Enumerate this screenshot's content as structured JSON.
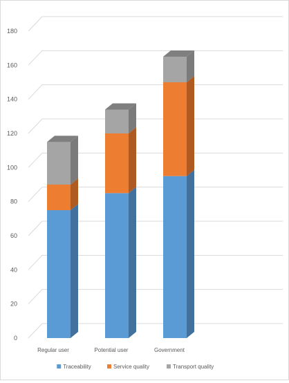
{
  "chart_data": {
    "type": "bar",
    "stacked": true,
    "style": "3d-columns",
    "categories": [
      "Regular user",
      "Potential user",
      "Government"
    ],
    "series": [
      {
        "name": "Traceability",
        "values": [
          75,
          85,
          95
        ],
        "color": "#5B9BD5",
        "side_color": "#41719C",
        "top_color": "#7FB2E0"
      },
      {
        "name": "Service quality",
        "values": [
          15,
          35,
          55
        ],
        "color": "#ED7D31",
        "side_color": "#AE5A21",
        "top_color": "#F19D61"
      },
      {
        "name": "Transport quality",
        "values": [
          25,
          14,
          15
        ],
        "color": "#A5A5A5",
        "side_color": "#7B7B7B",
        "top_color": "#7F7F7F"
      }
    ],
    "ylim": [
      0,
      180
    ],
    "yticks": [
      0,
      20,
      40,
      60,
      80,
      100,
      120,
      140,
      160,
      180
    ],
    "grid": true,
    "legend": "bottom",
    "title": "",
    "xlabel": "",
    "ylabel": ""
  }
}
